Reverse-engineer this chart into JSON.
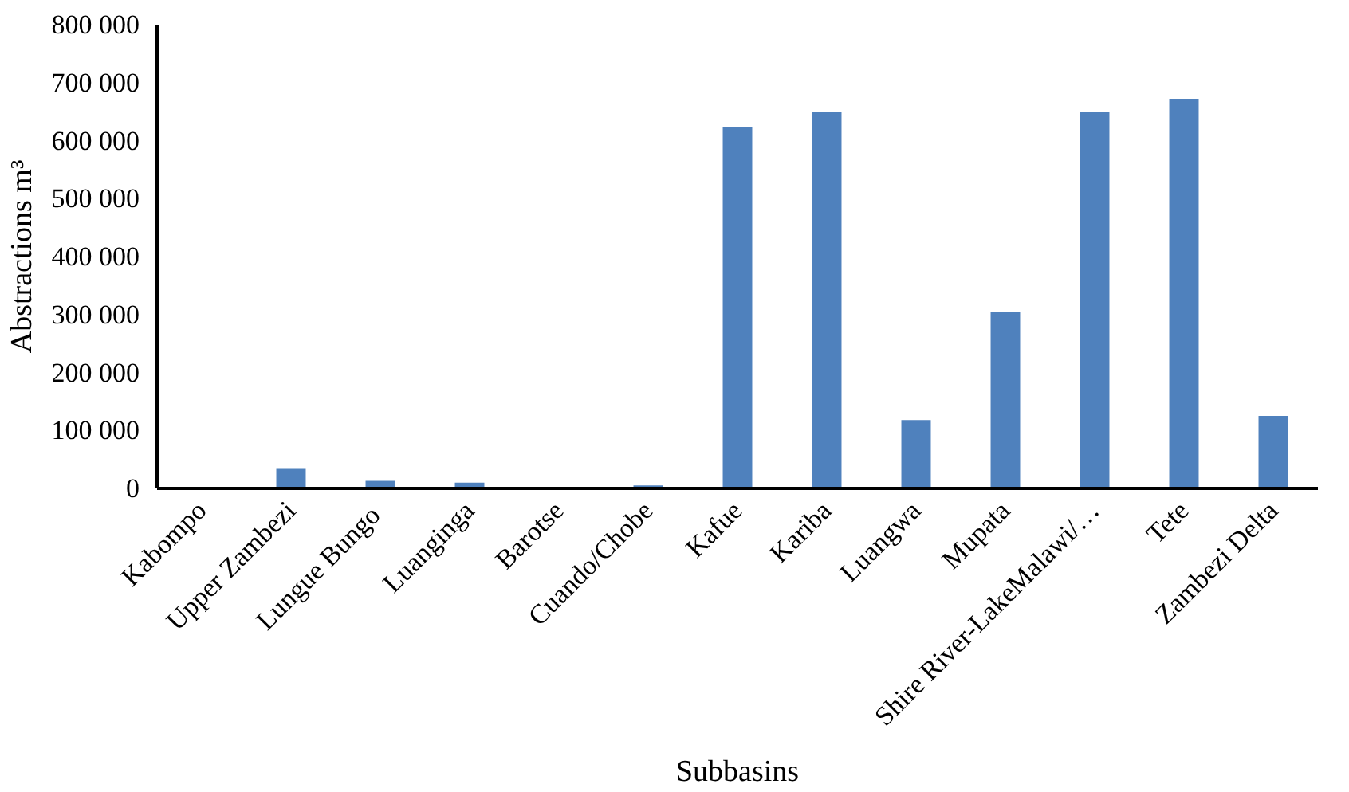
{
  "chart_data": {
    "type": "bar",
    "xlabel": "Subbasins",
    "ylabel": "Abstractions m³",
    "categories": [
      "Kabompo",
      "Upper Zambezi",
      "Lungue  Bungo",
      "Luanginga",
      "Barotse",
      "Cuando/Chobe",
      "Kafue",
      "Kariba",
      "Luangwa",
      "Mupata",
      "Shire River-LakeMalawi/…",
      "Tete",
      "Zambezi Delta"
    ],
    "values": [
      0,
      35000,
      13000,
      10000,
      0,
      5000,
      624000,
      650000,
      118000,
      304000,
      650000,
      672000,
      125000
    ],
    "color": "#4f81bd",
    "ylim": [
      0,
      800000
    ],
    "yticks": [
      {
        "value": 0,
        "label": "0"
      },
      {
        "value": 100000,
        "label": "100 000"
      },
      {
        "value": 200000,
        "label": "200 000"
      },
      {
        "value": 300000,
        "label": "300 000"
      },
      {
        "value": 400000,
        "label": "400 000"
      },
      {
        "value": 500000,
        "label": "500 000"
      },
      {
        "value": 600000,
        "label": "600 000"
      },
      {
        "value": 700000,
        "label": "700 000"
      },
      {
        "value": 800000,
        "label": "800 000"
      }
    ],
    "grid": false
  }
}
